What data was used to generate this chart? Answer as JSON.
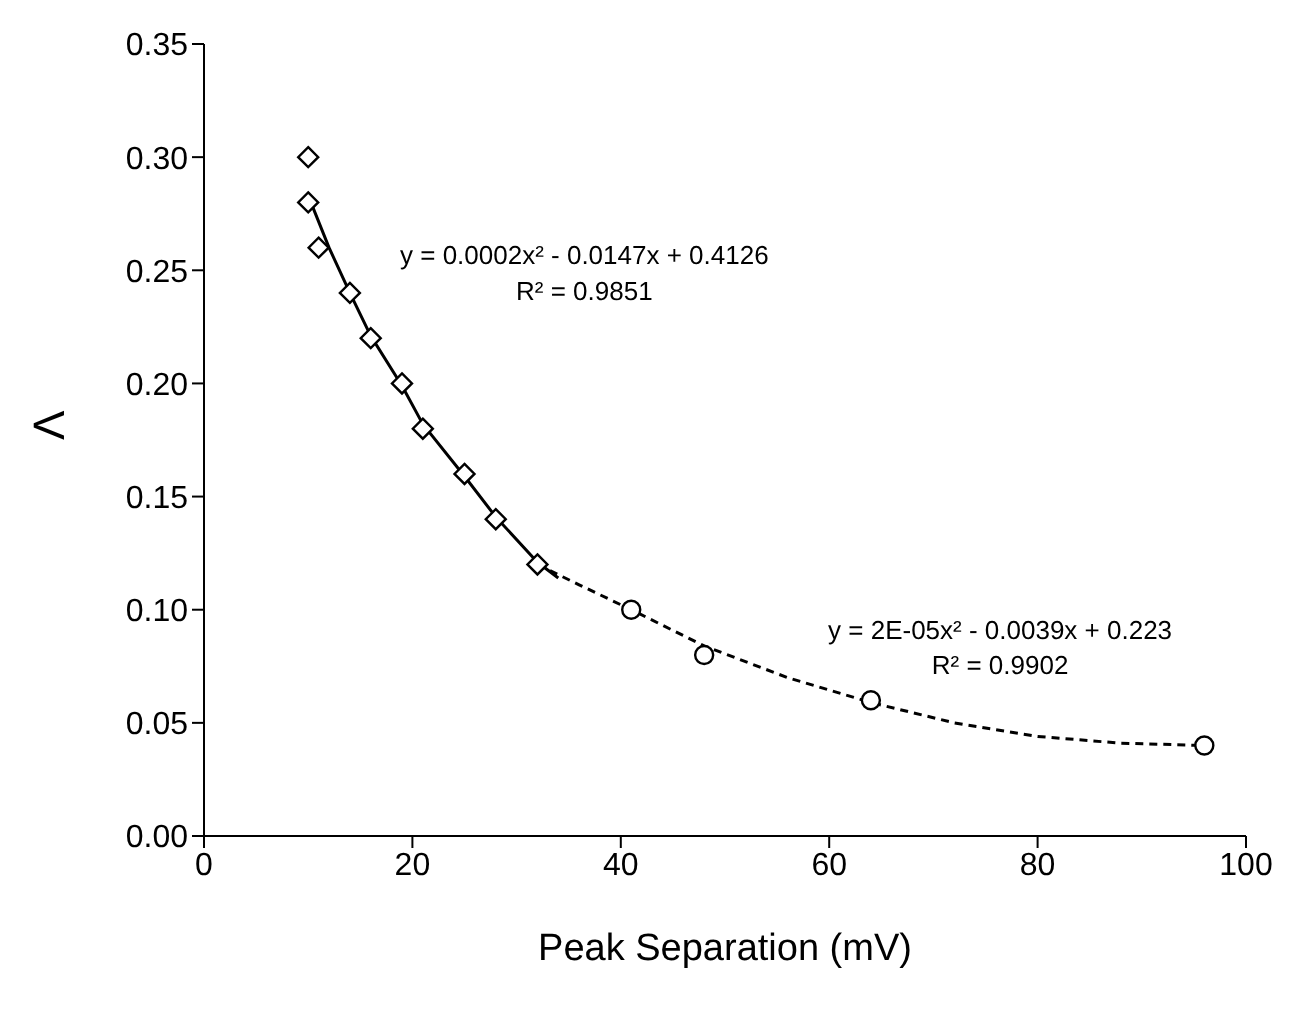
{
  "chart_data": {
    "type": "scatter",
    "xlabel": "Peak Separation (mV)",
    "ylabel": "Λ",
    "xlim": [
      0,
      100
    ],
    "xticks": [
      0,
      20,
      40,
      60,
      80,
      100
    ],
    "ylim": [
      0,
      0.35
    ],
    "yticks": [
      {
        "value": 0,
        "label": "0.00"
      },
      {
        "value": 0.05,
        "label": "0.05"
      },
      {
        "value": 0.1,
        "label": "0.10"
      },
      {
        "value": 0.15,
        "label": "0.15"
      },
      {
        "value": 0.2,
        "label": "0.20"
      },
      {
        "value": 0.25,
        "label": "0.25"
      },
      {
        "value": 0.3,
        "label": "0.30"
      },
      {
        "value": 0.35,
        "label": "0.35"
      }
    ],
    "series": [
      {
        "marker": "diamond",
        "color": "#000000",
        "x": [
          10,
          10,
          11,
          14,
          16,
          19,
          21,
          25,
          28,
          32
        ],
        "values": [
          0.3,
          0.28,
          0.26,
          0.24,
          0.22,
          0.2,
          0.18,
          0.16,
          0.14,
          0.12
        ]
      },
      {
        "marker": "circle",
        "color": "#000000",
        "x": [
          41,
          48,
          64,
          96
        ],
        "values": [
          0.1,
          0.08,
          0.06,
          0.04
        ]
      },
      {
        "type": "line",
        "marker": "none",
        "line_style": "solid",
        "color": "#000000",
        "x": [
          10,
          12,
          14,
          16,
          19,
          21,
          25,
          28,
          32,
          34
        ],
        "values": [
          0.283,
          0.26,
          0.24,
          0.221,
          0.199,
          0.182,
          0.159,
          0.141,
          0.121,
          0.114
        ]
      },
      {
        "type": "line",
        "marker": "none",
        "line_style": "dashed",
        "color": "#000000",
        "x": [
          32,
          36,
          41,
          48,
          56,
          64,
          72,
          80,
          88,
          96
        ],
        "values": [
          0.12,
          0.111,
          0.1,
          0.084,
          0.07,
          0.059,
          0.05,
          0.044,
          0.041,
          0.04
        ]
      }
    ],
    "annotations": [
      "y = 0.0002x² - 0.0147x + 0.4126",
      "R² = 0.9851",
      "y = 2E-05x² - 0.0039x + 0.223",
      "R² = 0.9902"
    ]
  }
}
